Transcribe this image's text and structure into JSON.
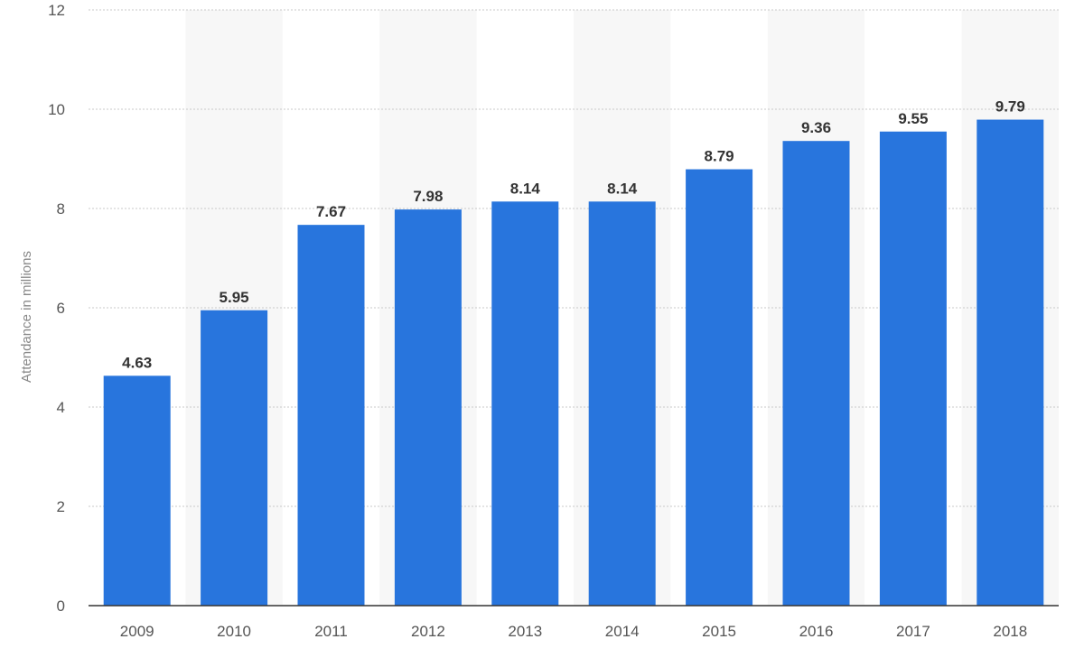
{
  "chart_data": {
    "type": "bar",
    "categories": [
      "2009",
      "2010",
      "2011",
      "2012",
      "2013",
      "2014",
      "2015",
      "2016",
      "2017",
      "2018"
    ],
    "values": [
      4.63,
      5.95,
      7.67,
      7.98,
      8.14,
      8.14,
      8.79,
      9.36,
      9.55,
      9.79
    ],
    "value_labels": [
      "4.63",
      "5.95",
      "7.67",
      "7.98",
      "8.14",
      "8.14",
      "8.79",
      "9.36",
      "9.55",
      "9.79"
    ],
    "title": "",
    "xlabel": "",
    "ylabel": "Attendance in millions",
    "ylim": [
      0,
      12
    ],
    "yticks": [
      0,
      2,
      4,
      6,
      8,
      10,
      12
    ],
    "ytick_labels": [
      "0",
      "2",
      "4",
      "6",
      "8",
      "10",
      "12"
    ],
    "grid": true,
    "legend": "none",
    "bar_color": "#2875dd",
    "band_color": "#f7f7f7"
  }
}
